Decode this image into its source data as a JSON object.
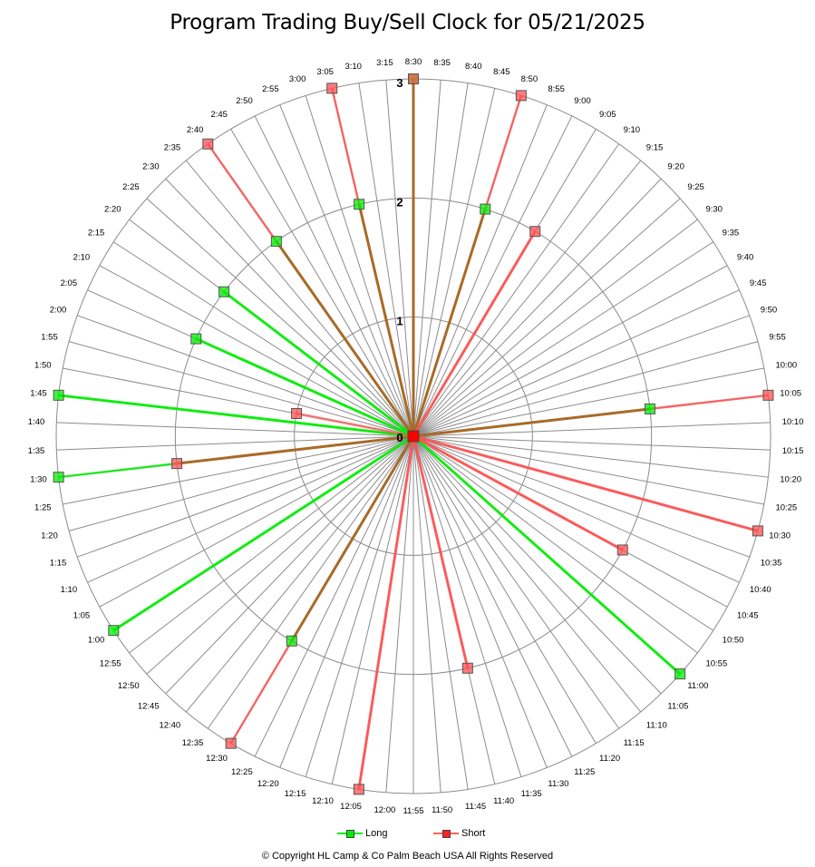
{
  "chart_data": {
    "type": "radar",
    "title": "Program Trading Buy/Sell Clock  for  05/21/2025",
    "radial_axis": {
      "min": 0,
      "max": 3,
      "ticks": [
        "0",
        "1",
        "2",
        "3"
      ]
    },
    "categories": [
      "8:30",
      "8:35",
      "8:40",
      "8:45",
      "8:50",
      "8:55",
      "9:00",
      "9:05",
      "9:10",
      "9:15",
      "9:20",
      "9:25",
      "9:30",
      "9:35",
      "9:40",
      "9:45",
      "9:50",
      "9:55",
      "10:00",
      "10:05",
      "10:10",
      "10:15",
      "10:20",
      "10:25",
      "10:30",
      "10:35",
      "10:40",
      "10:45",
      "10:50",
      "10:55",
      "11:00",
      "11:05",
      "11:10",
      "11:15",
      "11:20",
      "11:25",
      "11:30",
      "11:35",
      "11:40",
      "11:45",
      "11:50",
      "11:55",
      "12:00",
      "12:05",
      "12:10",
      "12:15",
      "12:20",
      "12:25",
      "12:30",
      "12:35",
      "12:40",
      "12:45",
      "12:50",
      "12:55",
      "1:00",
      "1:05",
      "1:10",
      "1:15",
      "1:20",
      "1:25",
      "1:30",
      "1:35",
      "1:40",
      "1:45",
      "1:50",
      "1:55",
      "2:00",
      "2:05",
      "2:10",
      "2:15",
      "2:20",
      "2:25",
      "2:30",
      "2:35",
      "2:40",
      "2:45",
      "2:50",
      "2:55",
      "3:00",
      "3:05",
      "3:10",
      "3:15"
    ],
    "series": [
      {
        "name": "Long",
        "color": "#00ee00",
        "points": [
          {
            "time": "8:30",
            "value": 3
          },
          {
            "time": "8:50",
            "value": 2
          },
          {
            "time": "10:05",
            "value": 2
          },
          {
            "time": "11:00",
            "value": 3
          },
          {
            "time": "12:30",
            "value": 2
          },
          {
            "time": "1:00",
            "value": 3
          },
          {
            "time": "1:30",
            "value": 3
          },
          {
            "time": "1:45",
            "value": 3
          },
          {
            "time": "2:05",
            "value": 2
          },
          {
            "time": "2:20",
            "value": 2
          },
          {
            "time": "2:40",
            "value": 2
          },
          {
            "time": "3:05",
            "value": 2
          }
        ]
      },
      {
        "name": "Short",
        "color": "#ff5050",
        "points": [
          {
            "time": "8:30",
            "value": 3
          },
          {
            "time": "8:50",
            "value": 3
          },
          {
            "time": "9:05",
            "value": 2
          },
          {
            "time": "10:05",
            "value": 3
          },
          {
            "time": "10:30",
            "value": 3
          },
          {
            "time": "10:45",
            "value": 2
          },
          {
            "time": "11:40",
            "value": 2
          },
          {
            "time": "12:05",
            "value": 3
          },
          {
            "time": "12:30",
            "value": 3
          },
          {
            "time": "1:30",
            "value": 2
          },
          {
            "time": "1:50",
            "value": 1
          },
          {
            "time": "2:40",
            "value": 3
          },
          {
            "time": "3:05",
            "value": 3
          }
        ]
      }
    ],
    "legend_position": "bottom",
    "grid": true
  },
  "legend": {
    "long_label": "Long",
    "short_label": "Short"
  },
  "footer": {
    "copyright": "© Copyright  HL Camp & Co  Palm Beach  USA  All Rights Reserved"
  },
  "colors": {
    "long": "#00ee00",
    "short": "#ff5050",
    "overlap": "#a86a28",
    "grid": "#8c8c8c"
  }
}
